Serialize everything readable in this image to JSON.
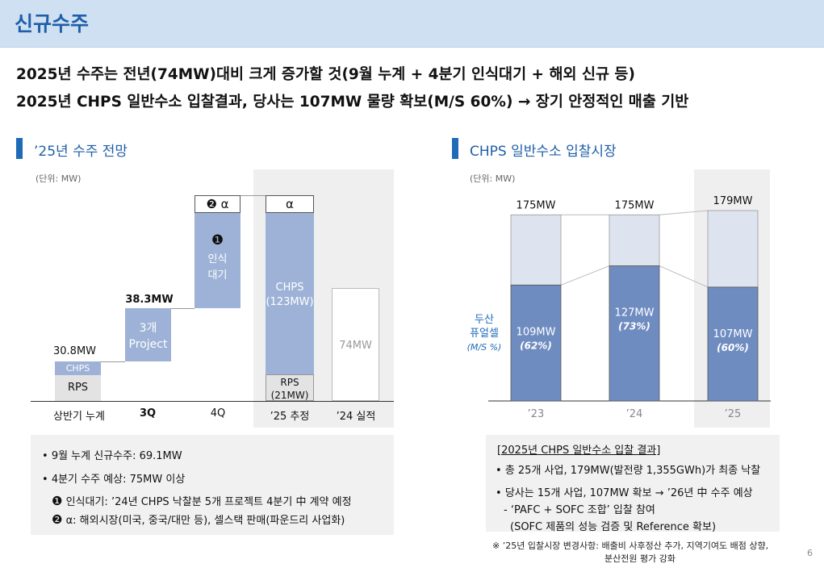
{
  "header": {
    "title": "신규수주"
  },
  "headlines": [
    "2025년 수주는 전년(74MW)대비 크게 증가할 것(9월 누계 + 4분기 인식대기 + 해외 신규 등)",
    "2025년 CHPS 일반수소 입찰결과, 당사는 107MW 물량 확보(M/S 60%) → 장기 안정적인 매출 기반"
  ],
  "left": {
    "title": "’25년 수주 전망",
    "unit": "(단위: MW)",
    "chart_data": {
      "type": "bar",
      "subtype": "waterfall",
      "unit": "MW",
      "categories": [
        "상반기 누계",
        "3Q",
        "4Q",
        "’25 추정",
        "’24 실적"
      ],
      "totals": {
        "h1": "30.8MW",
        "q3": "38.3MW",
        "prev": "74MW"
      },
      "values": {
        "h1": 30.8,
        "q3_cumulative": 38.3,
        "prev": 74
      },
      "segments": {
        "h1_rps": "RPS",
        "h1_chps": "CHPS",
        "q3": "3개\nProject",
        "q4_alpha": "α",
        "q4_alpha_marker": "❷",
        "q4_pending_marker": "❶",
        "q4_pending": "인식\n대기",
        "est_alpha": "α",
        "est_chps": "CHPS\n(123MW)",
        "est_rps": "RPS\n(21MW)"
      }
    },
    "notes": {
      "line1": "9월 누계 신규수주: 69.1MW",
      "line2": "4분기 수주 예상: 75MW 이상",
      "sub1_marker": "❶",
      "sub1": "인식대기: ’24년 CHPS 낙찰분 5개 프로젝트 4분기 中 계약 예정",
      "sub2_marker": "❷",
      "sub2": "α: 해외시장(미국, 중국/대만 등), 셀스택 판매(파운드리 사업화)"
    }
  },
  "right": {
    "title": "CHPS 일반수소 입찰시장",
    "unit": "(단위: MW)",
    "legend": {
      "company": "두산\n퓨얼셀",
      "share": "(M/S %)"
    },
    "chart_data": {
      "type": "bar",
      "subtype": "stacked",
      "categories": [
        "’23",
        "’24",
        "’25"
      ],
      "total_labels": [
        "175MW",
        "175MW",
        "179MW"
      ],
      "totals": [
        175,
        175,
        179
      ],
      "series": [
        {
          "name": "두산 퓨얼셀",
          "values": [
            109,
            127,
            107
          ]
        }
      ],
      "value_labels": [
        "109MW",
        "127MW",
        "107MW"
      ],
      "share_labels": [
        "(62%)",
        "(73%)",
        "(60%)"
      ],
      "colors": {
        "company": "#6f8cc0",
        "total": "#dde3ef"
      }
    },
    "notes": {
      "title": "[2025년 CHPS 일반수소 입찰 결과]",
      "line1": "총 25개 사업, 179MW(발전량 1,355GWh)가 최종 낙찰",
      "line2": "당사는 15개 사업, 107MW 확보 → ’26년 中 수주 예상",
      "line3": "- ‘PAFC + SOFC 조합’ 입찰 참여",
      "line4": "(SOFC 제품의 성능 검증 및 Reference 확보)"
    },
    "footnote": {
      "line1": "※ ’25년 입찰시장 변경사항: 배출비 사후정산 추가, 지역기여도 배점 상향,",
      "line2": "분산전원 평가 강화"
    }
  },
  "page_number": "6",
  "colors": {
    "accent": "#1f5fa8",
    "bar_blue_light": "#9db2d6",
    "bar_blue": "#6f8cc0",
    "rps_gray": "#e3e3e3"
  }
}
